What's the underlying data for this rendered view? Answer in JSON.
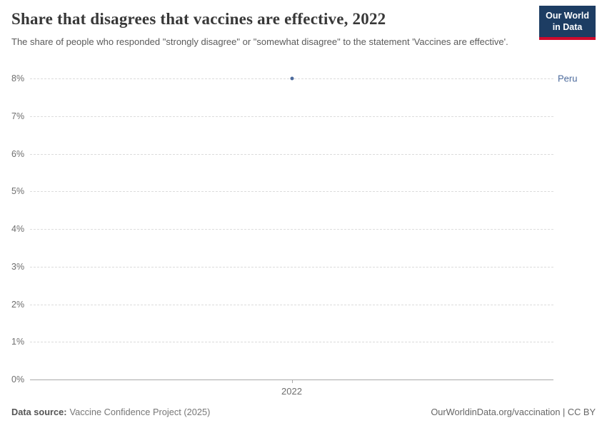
{
  "header": {
    "title": "Share that disagrees that vaccines are effective, 2022",
    "subtitle": "The share of people who responded \"strongly disagree\" or \"somewhat disagree\" to the statement 'Vaccines are effective'.",
    "logo": {
      "line1": "Our World",
      "line2": "in Data",
      "bg": "#1d3d63",
      "accent": "#cf0a2c"
    }
  },
  "chart_data": {
    "type": "scatter",
    "title": "Share that disagrees that vaccines are effective, 2022",
    "x": [
      2022
    ],
    "series": [
      {
        "name": "Peru",
        "values": [
          8
        ],
        "color": "#4c6a9c"
      }
    ],
    "ylim": [
      0,
      8
    ],
    "yticks": [
      "0%",
      "1%",
      "2%",
      "3%",
      "4%",
      "5%",
      "6%",
      "7%",
      "8%"
    ],
    "xticks": [
      "2022"
    ],
    "grid": "horizontal-dashed",
    "legend": "entity-label-right"
  },
  "footer": {
    "source_label": "Data source:",
    "source_text": "Vaccine Confidence Project (2025)",
    "right_text": "OurWorldinData.org/vaccination | CC BY"
  }
}
